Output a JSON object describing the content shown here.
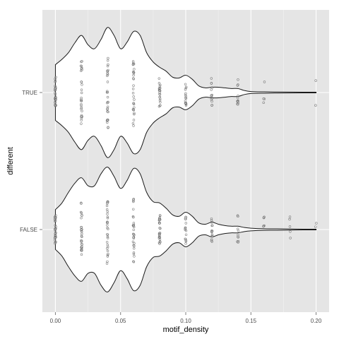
{
  "chart_data": {
    "type": "violin",
    "xlabel": "motif_density",
    "ylabel": "different",
    "xlim": [
      -0.01,
      0.21
    ],
    "x_ticks": [
      0.0,
      0.05,
      0.1,
      0.15,
      0.2
    ],
    "x_tick_labels": [
      "0.00",
      "0.05",
      "0.10",
      "0.15",
      "0.20"
    ],
    "categories": [
      "TRUE",
      "FALSE"
    ],
    "grid": true,
    "background": "#e5e5e5",
    "gridline_color": "#ffffff",
    "violins": [
      {
        "category": "TRUE",
        "density_profile": [
          [
            0.0,
            0.42
          ],
          [
            0.005,
            0.5
          ],
          [
            0.01,
            0.6
          ],
          [
            0.015,
            0.75
          ],
          [
            0.02,
            0.86
          ],
          [
            0.025,
            0.72
          ],
          [
            0.03,
            0.66
          ],
          [
            0.035,
            0.8
          ],
          [
            0.04,
            0.98
          ],
          [
            0.045,
            0.86
          ],
          [
            0.05,
            0.66
          ],
          [
            0.055,
            0.76
          ],
          [
            0.06,
            0.92
          ],
          [
            0.065,
            0.86
          ],
          [
            0.07,
            0.6
          ],
          [
            0.075,
            0.46
          ],
          [
            0.08,
            0.38
          ],
          [
            0.085,
            0.32
          ],
          [
            0.09,
            0.23
          ],
          [
            0.095,
            0.22
          ],
          [
            0.1,
            0.26
          ],
          [
            0.105,
            0.2
          ],
          [
            0.11,
            0.1
          ],
          [
            0.115,
            0.07
          ],
          [
            0.12,
            0.08
          ],
          [
            0.125,
            0.08
          ],
          [
            0.13,
            0.07
          ],
          [
            0.135,
            0.06
          ],
          [
            0.14,
            0.06
          ],
          [
            0.145,
            0.03
          ],
          [
            0.15,
            0.015
          ],
          [
            0.16,
            0.01
          ],
          [
            0.17,
            0.008
          ],
          [
            0.18,
            0.007
          ],
          [
            0.19,
            0.006
          ],
          [
            0.2,
            0.005
          ]
        ],
        "points": [
          {
            "x": 0.0,
            "count": 30
          },
          {
            "x": 0.02,
            "count": 30
          },
          {
            "x": 0.04,
            "count": 30
          },
          {
            "x": 0.06,
            "count": 30
          },
          {
            "x": 0.08,
            "count": 22
          },
          {
            "x": 0.1,
            "count": 16
          },
          {
            "x": 0.12,
            "count": 14
          },
          {
            "x": 0.14,
            "count": 12
          },
          {
            "x": 0.16,
            "count": 4
          },
          {
            "x": 0.2,
            "count": 2
          }
        ]
      },
      {
        "category": "FALSE",
        "density_profile": [
          [
            0.0,
            0.3
          ],
          [
            0.005,
            0.4
          ],
          [
            0.01,
            0.56
          ],
          [
            0.015,
            0.7
          ],
          [
            0.02,
            0.78
          ],
          [
            0.025,
            0.66
          ],
          [
            0.03,
            0.66
          ],
          [
            0.035,
            0.84
          ],
          [
            0.04,
            0.94
          ],
          [
            0.045,
            0.8
          ],
          [
            0.05,
            0.62
          ],
          [
            0.055,
            0.74
          ],
          [
            0.06,
            0.92
          ],
          [
            0.065,
            0.84
          ],
          [
            0.07,
            0.56
          ],
          [
            0.075,
            0.42
          ],
          [
            0.08,
            0.4
          ],
          [
            0.085,
            0.32
          ],
          [
            0.09,
            0.22
          ],
          [
            0.095,
            0.2
          ],
          [
            0.1,
            0.26
          ],
          [
            0.105,
            0.2
          ],
          [
            0.11,
            0.1
          ],
          [
            0.115,
            0.08
          ],
          [
            0.12,
            0.11
          ],
          [
            0.125,
            0.08
          ],
          [
            0.13,
            0.06
          ],
          [
            0.135,
            0.05
          ],
          [
            0.14,
            0.05
          ],
          [
            0.145,
            0.03
          ],
          [
            0.15,
            0.02
          ],
          [
            0.16,
            0.012
          ],
          [
            0.17,
            0.01
          ],
          [
            0.18,
            0.008
          ],
          [
            0.19,
            0.006
          ],
          [
            0.2,
            0.005
          ]
        ],
        "points": [
          {
            "x": 0.0,
            "count": 30
          },
          {
            "x": 0.02,
            "count": 30
          },
          {
            "x": 0.04,
            "count": 30
          },
          {
            "x": 0.06,
            "count": 30
          },
          {
            "x": 0.08,
            "count": 28
          },
          {
            "x": 0.1,
            "count": 16
          },
          {
            "x": 0.12,
            "count": 16
          },
          {
            "x": 0.14,
            "count": 10
          },
          {
            "x": 0.16,
            "count": 6
          },
          {
            "x": 0.18,
            "count": 5
          },
          {
            "x": 0.2,
            "count": 2
          }
        ]
      }
    ]
  }
}
